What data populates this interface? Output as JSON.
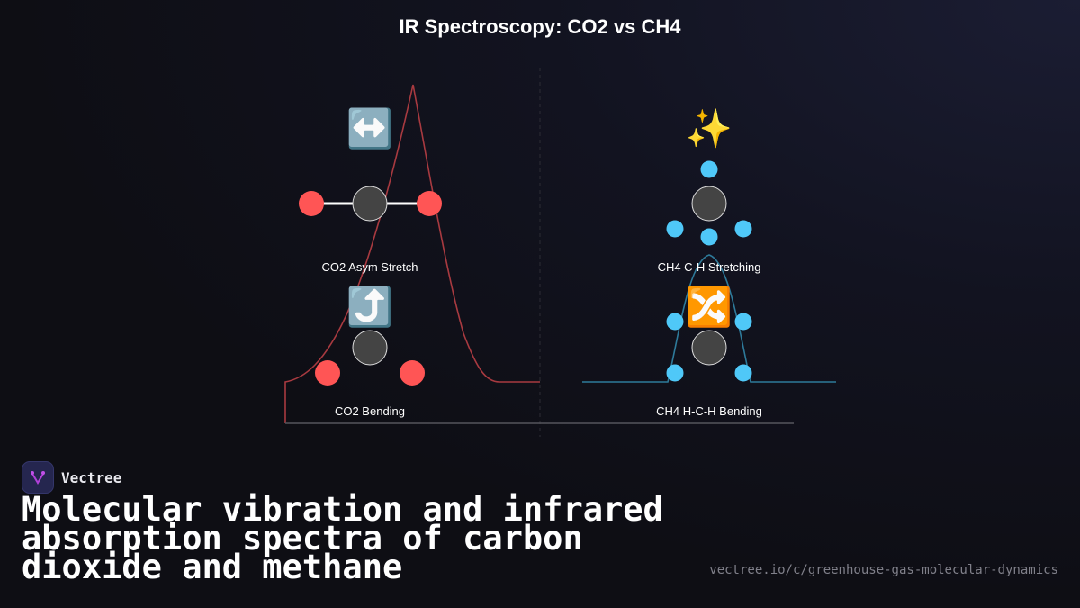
{
  "title": "IR Spectroscopy: CO2 vs CH4",
  "modes": {
    "co2_asym": {
      "label": "CO2 Asym Stretch",
      "icon": "↔️",
      "icon_name": "left-right-arrow-icon"
    },
    "co2_bend": {
      "label": "CO2 Bending",
      "icon": "⤴️",
      "icon_name": "arrow-curving-up-icon"
    },
    "ch4_stretch": {
      "label": "CH4 C-H Stretching",
      "icon": "✨",
      "icon_name": "sparkles-icon"
    },
    "ch4_bend": {
      "label": "CH4 H-C-H Bending",
      "icon": "🔀",
      "icon_name": "shuffle-icon"
    }
  },
  "colors": {
    "oxygen": "#ff5555",
    "hydrogen": "#4fc8f8",
    "carbon": "#444444",
    "co2_spectrum": "#a83a40",
    "ch4_spectrum": "#2e7a9a"
  },
  "brand": {
    "name": "Vectree"
  },
  "headline": "Molecular vibration and infrared absorption spectra of carbon dioxide and methane",
  "url": "vectree.io/c/greenhouse-gas-molecular-dynamics"
}
